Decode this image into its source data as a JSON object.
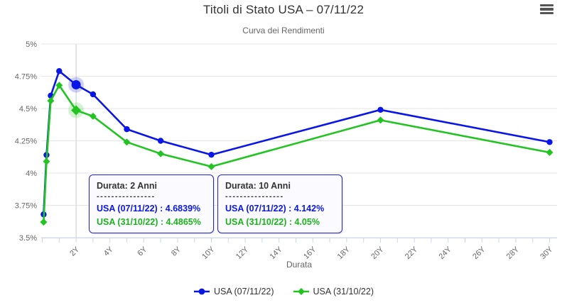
{
  "chart_data": {
    "type": "line",
    "title": "Titoli di Stato USA – 07/11/22",
    "subtitle": "Curva dei Rendimenti",
    "xlabel": "Durata",
    "ylabel": "",
    "ylim": [
      3.5,
      5.0
    ],
    "xlim": [
      0,
      30.5
    ],
    "grid": "horizontal-only",
    "legend_position": "bottom-center",
    "y_ticks": [
      {
        "value": 3.5,
        "label": "3.5%"
      },
      {
        "value": 3.75,
        "label": "3.75%"
      },
      {
        "value": 4.0,
        "label": "4%"
      },
      {
        "value": 4.25,
        "label": "4.25%"
      },
      {
        "value": 4.5,
        "label": "4.5%"
      },
      {
        "value": 4.75,
        "label": "4.75%"
      },
      {
        "value": 5.0,
        "label": "5%"
      }
    ],
    "x_major_ticks": [
      {
        "year": 2,
        "label": "2Y"
      },
      {
        "year": 4,
        "label": "4Y"
      },
      {
        "year": 6,
        "label": "6Y"
      },
      {
        "year": 8,
        "label": "8Y"
      },
      {
        "year": 10,
        "label": "10Y"
      },
      {
        "year": 12,
        "label": "12Y"
      },
      {
        "year": 14,
        "label": "14Y"
      },
      {
        "year": 16,
        "label": "16Y"
      },
      {
        "year": 18,
        "label": "18Y"
      },
      {
        "year": 20,
        "label": "20Y"
      },
      {
        "year": 22,
        "label": "22Y"
      },
      {
        "year": 24,
        "label": "24Y"
      },
      {
        "year": 26,
        "label": "26Y"
      },
      {
        "year": 28,
        "label": "28Y"
      },
      {
        "year": 30,
        "label": "30Y"
      }
    ],
    "maturities": [
      "1M",
      "3M",
      "6M",
      "1Y",
      "2Y",
      "3Y",
      "5Y",
      "7Y",
      "10Y",
      "20Y",
      "30Y"
    ],
    "x_years": [
      0.08,
      0.25,
      0.5,
      1,
      2,
      3,
      5,
      7,
      10,
      20,
      30
    ],
    "series": [
      {
        "name": "USA (07/11/22)",
        "color": "#0a16e8",
        "marker": "circle",
        "values": [
          3.68,
          4.14,
          4.6,
          4.79,
          4.6839,
          4.61,
          4.34,
          4.25,
          4.142,
          4.49,
          4.24
        ]
      },
      {
        "name": "USA (31/10/22)",
        "color": "#22c422",
        "marker": "diamond",
        "values": [
          3.62,
          4.09,
          4.56,
          4.68,
          4.4865,
          4.44,
          4.24,
          4.15,
          4.05,
          4.41,
          4.16
        ]
      }
    ],
    "highlighted_point": {
      "category": "2Y",
      "index": 4
    },
    "crosshair_year": 2
  },
  "tooltips": [
    {
      "title": "Durata: 2 Anni",
      "divider": "----------------",
      "rows": [
        "USA (07/11/22) : 4.6839%",
        "USA (31/10/22) : 4.4865%"
      ]
    },
    {
      "title": "Durata: 10 Anni",
      "divider": "----------------",
      "rows": [
        "USA (07/11/22) : 4.142%",
        "USA (31/10/22) : 4.05%"
      ]
    }
  ],
  "legend": {
    "items": [
      {
        "label": "USA (07/11/22)"
      },
      {
        "label": "USA (31/10/22)"
      }
    ]
  },
  "colors": {
    "series_blue": "#0a16e8",
    "series_green": "#22c422",
    "tooltip_border": "#2222cc",
    "gridline": "#e6e6e6",
    "axis_line": "#ccd6eb",
    "crosshair": "#cccccc",
    "label_gray": "#666666",
    "title_gray": "#333333"
  },
  "menu_icon": "hamburger-context-menu"
}
